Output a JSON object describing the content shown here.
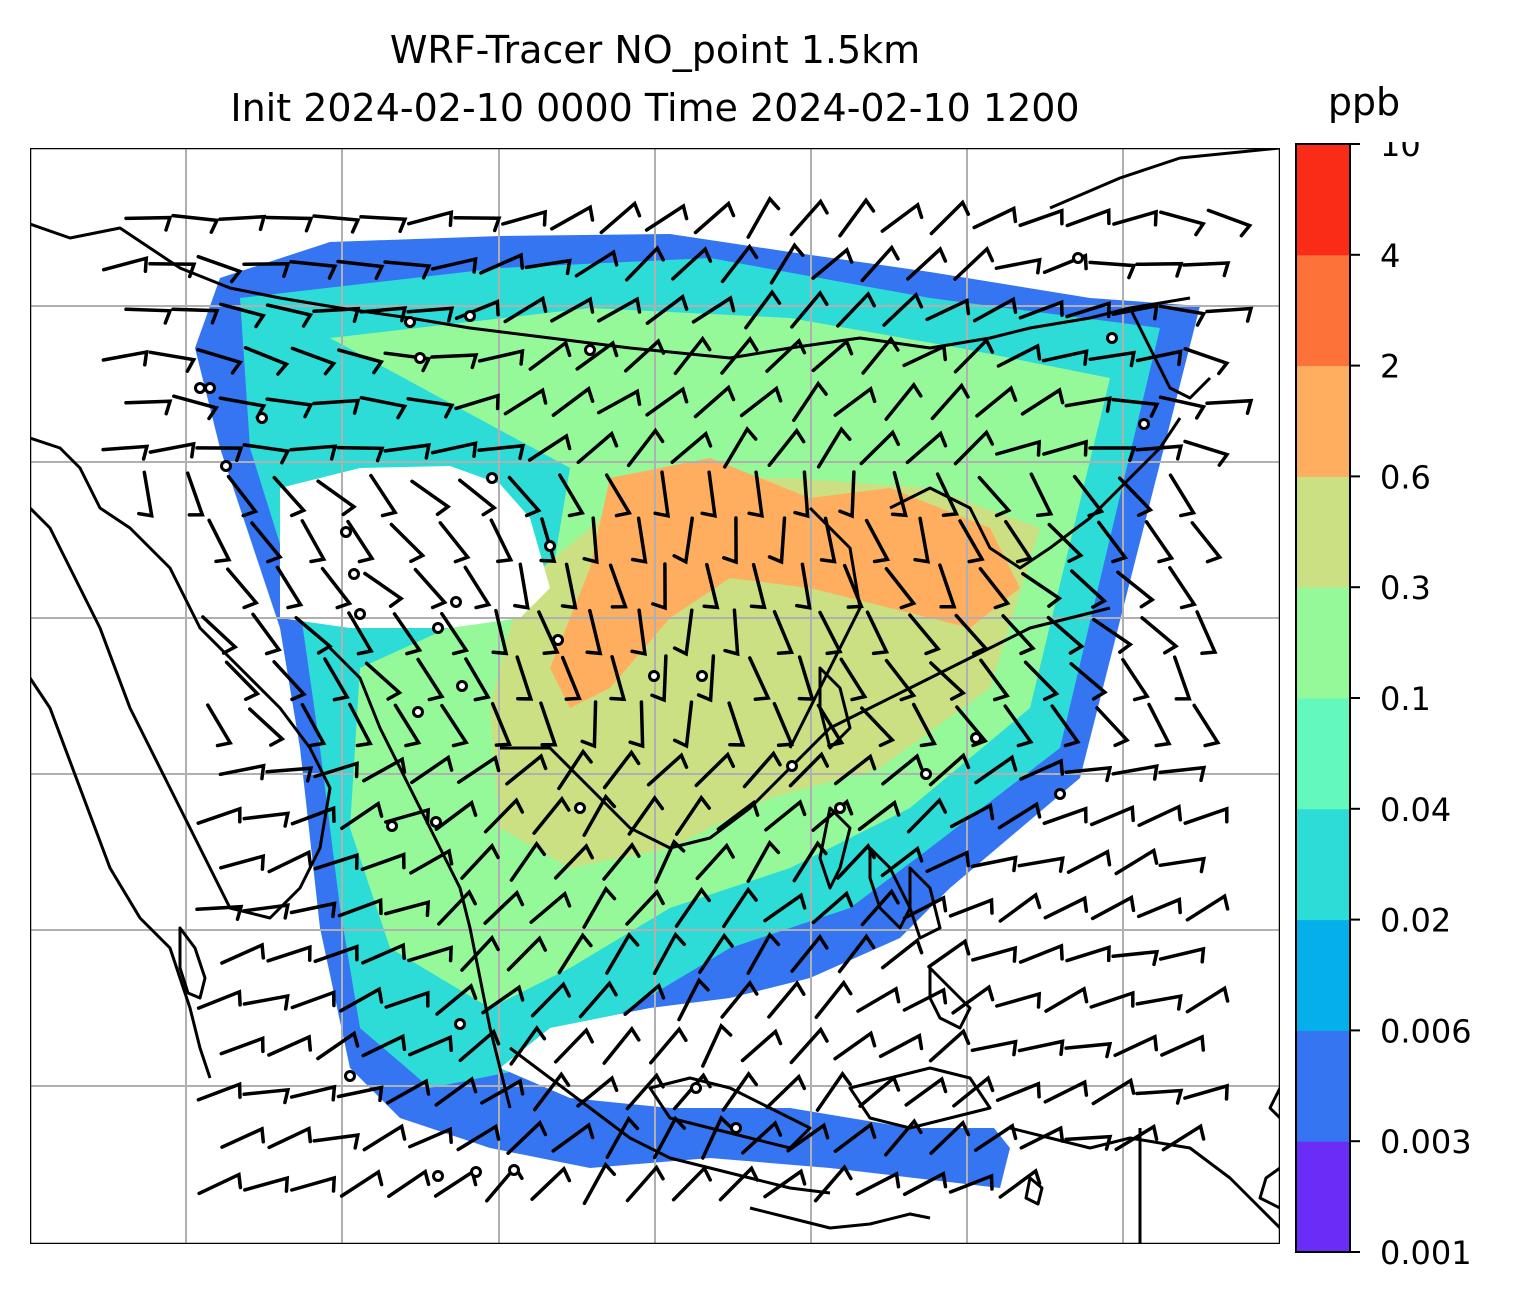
{
  "title": {
    "line1": "WRF-Tracer NO_point 1.5km",
    "line2": "Init 2024-02-10 0000 Time 2024-02-10 1200"
  },
  "colorbar": {
    "unit": "ppb",
    "ticks": [
      "0.001",
      "0.003",
      "0.006",
      "0.02",
      "0.04",
      "0.1",
      "0.3",
      "0.6",
      "2",
      "4",
      "10"
    ],
    "colors": [
      "#6a2cf6",
      "#3575f2",
      "#05b0ea",
      "#2ddbd7",
      "#63f8bc",
      "#95f99a",
      "#cbe082",
      "#feae5e",
      "#fd7239",
      "#fb2c17"
    ]
  },
  "map": {
    "style": {
      "gridlines": true,
      "grid_color": "#b0b0b0",
      "coastline_color": "#000000",
      "barb_color": "#000000",
      "background": "#ffffff"
    }
  }
}
